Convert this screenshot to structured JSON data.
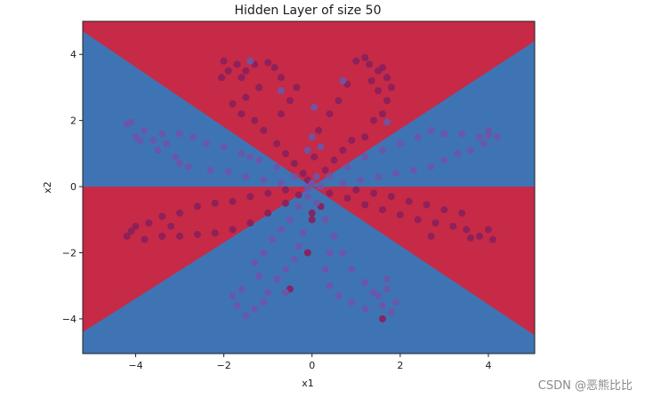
{
  "chart_data": {
    "type": "scatter",
    "title": "Hidden Layer of size 50",
    "xlabel": "x1",
    "ylabel": "x2",
    "xlim": [
      -5.2,
      5.05
    ],
    "ylim": [
      -5.05,
      5.0
    ],
    "xticks": [
      -4,
      -2,
      0,
      2,
      4
    ],
    "yticks": [
      -4,
      -2,
      0,
      2,
      4
    ],
    "xtick_labels": [
      "−4",
      "−2",
      "0",
      "2",
      "4"
    ],
    "ytick_labels": [
      "−4",
      "−2",
      "0",
      "2",
      "4"
    ],
    "grid": false,
    "background": {
      "type": "decision_regions",
      "red_color": "#c62a47",
      "blue_color": "#3f74b4",
      "red_regions": [
        [
          [
            -5.2,
            5.0
          ],
          [
            5.05,
            5.0
          ],
          [
            5.05,
            4.4
          ],
          [
            0,
            0
          ],
          [
            -5.2,
            4.7
          ]
        ],
        [
          [
            -5.2,
            0
          ],
          [
            0,
            0
          ],
          [
            5.05,
            0
          ],
          [
            5.05,
            -4.5
          ],
          [
            0,
            0
          ],
          [
            -5.2,
            -4.4
          ]
        ]
      ]
    },
    "series": [
      {
        "color": "#8a1f5c",
        "points": [
          [
            -2.0,
            3.8
          ],
          [
            -1.7,
            3.7
          ],
          [
            -1.5,
            3.5
          ],
          [
            -1.6,
            3.3
          ],
          [
            -1.9,
            3.5
          ],
          [
            -1.3,
            3.7
          ],
          [
            -1.0,
            3.75
          ],
          [
            -0.85,
            3.6
          ],
          [
            -0.7,
            3.3
          ],
          [
            -1.2,
            3.0
          ],
          [
            -1.5,
            2.7
          ],
          [
            -1.8,
            2.5
          ],
          [
            -1.6,
            2.2
          ],
          [
            -1.3,
            2.0
          ],
          [
            -1.1,
            1.7
          ],
          [
            -0.8,
            1.3
          ],
          [
            -0.6,
            1.0
          ],
          [
            -0.4,
            0.7
          ],
          [
            -0.2,
            0.4
          ],
          [
            -0.1,
            0.2
          ],
          [
            -0.35,
            3.0
          ],
          [
            -0.5,
            2.6
          ],
          [
            -0.7,
            2.2
          ],
          [
            -2.05,
            3.3
          ],
          [
            1.0,
            3.8
          ],
          [
            1.3,
            3.7
          ],
          [
            1.5,
            3.5
          ],
          [
            1.7,
            3.3
          ],
          [
            1.6,
            3.6
          ],
          [
            1.2,
            3.9
          ],
          [
            1.8,
            3.0
          ],
          [
            1.7,
            2.6
          ],
          [
            1.6,
            2.2
          ],
          [
            1.4,
            2.0
          ],
          [
            1.2,
            1.5
          ],
          [
            0.9,
            1.4
          ],
          [
            0.7,
            1.1
          ],
          [
            0.5,
            0.8
          ],
          [
            0.3,
            0.5
          ],
          [
            0.8,
            3.1
          ],
          [
            0.6,
            2.6
          ],
          [
            0.4,
            2.2
          ],
          [
            0.15,
            1.7
          ],
          [
            0.05,
            0.9
          ],
          [
            1.5,
            2.9
          ],
          [
            1.35,
            3.2
          ],
          [
            -4.2,
            -1.5
          ],
          [
            -4.0,
            -1.2
          ],
          [
            -3.7,
            -1.1
          ],
          [
            -3.4,
            -0.9
          ],
          [
            -3.0,
            -0.8
          ],
          [
            -2.6,
            -0.6
          ],
          [
            -2.2,
            -0.5
          ],
          [
            -1.8,
            -0.45
          ],
          [
            -1.4,
            -0.3
          ],
          [
            -1.0,
            -0.2
          ],
          [
            -0.6,
            -0.1
          ],
          [
            -3.8,
            -1.6
          ],
          [
            -3.4,
            -1.5
          ],
          [
            -3.0,
            -1.5
          ],
          [
            -2.6,
            -1.45
          ],
          [
            -2.2,
            -1.4
          ],
          [
            -1.8,
            -1.3
          ],
          [
            -1.4,
            -1.1
          ],
          [
            -1.0,
            -0.8
          ],
          [
            -0.6,
            -0.5
          ],
          [
            -0.3,
            -0.25
          ],
          [
            -4.1,
            -1.35
          ],
          [
            -3.2,
            -1.2
          ],
          [
            4.0,
            -1.3
          ],
          [
            4.1,
            -1.6
          ],
          [
            3.8,
            -1.5
          ],
          [
            3.5,
            -1.3
          ],
          [
            3.2,
            -1.2
          ],
          [
            2.8,
            -1.1
          ],
          [
            2.4,
            -1.0
          ],
          [
            2.0,
            -0.85
          ],
          [
            1.6,
            -0.7
          ],
          [
            1.2,
            -0.55
          ],
          [
            0.8,
            -0.35
          ],
          [
            0.4,
            -0.2
          ],
          [
            3.4,
            -0.8
          ],
          [
            3.0,
            -0.7
          ],
          [
            2.6,
            -0.55
          ],
          [
            2.2,
            -0.45
          ],
          [
            1.8,
            -0.3
          ],
          [
            1.4,
            -0.2
          ],
          [
            1.0,
            -0.1
          ],
          [
            3.6,
            -1.55
          ],
          [
            2.7,
            -1.5
          ],
          [
            0.2,
            -0.6
          ],
          [
            0.0,
            -1.0
          ],
          [
            1.6,
            -4.0
          ],
          [
            -0.5,
            -3.1
          ],
          [
            -0.1,
            -2.0
          ],
          [
            0.0,
            -0.8
          ]
        ]
      },
      {
        "color": "#6b56a8",
        "points": [
          [
            -4.2,
            1.9
          ],
          [
            -3.8,
            1.7
          ],
          [
            -3.4,
            1.6
          ],
          [
            -3.0,
            1.6
          ],
          [
            -2.7,
            1.5
          ],
          [
            -3.6,
            1.4
          ],
          [
            -3.3,
            1.3
          ],
          [
            -3.9,
            1.4
          ],
          [
            -4.0,
            1.5
          ],
          [
            -2.4,
            1.3
          ],
          [
            -2.0,
            1.2
          ],
          [
            -1.6,
            1.0
          ],
          [
            -1.2,
            0.8
          ],
          [
            -0.8,
            0.6
          ],
          [
            -0.4,
            0.3
          ],
          [
            -3.5,
            1.1
          ],
          [
            -3.1,
            0.9
          ],
          [
            -2.8,
            0.6
          ],
          [
            -2.3,
            0.5
          ],
          [
            -1.9,
            0.45
          ],
          [
            -1.5,
            0.3
          ],
          [
            -1.1,
            0.2
          ],
          [
            -0.7,
            0.1
          ],
          [
            -3.0,
            0.7
          ],
          [
            2.7,
            1.7
          ],
          [
            3.0,
            1.6
          ],
          [
            3.4,
            1.6
          ],
          [
            3.8,
            1.5
          ],
          [
            4.0,
            1.7
          ],
          [
            4.2,
            1.5
          ],
          [
            2.4,
            1.5
          ],
          [
            2.0,
            1.3
          ],
          [
            1.6,
            1.1
          ],
          [
            1.2,
            0.9
          ],
          [
            0.8,
            0.6
          ],
          [
            0.4,
            0.3
          ],
          [
            3.6,
            1.1
          ],
          [
            3.3,
            1.0
          ],
          [
            3.0,
            0.8
          ],
          [
            2.7,
            0.6
          ],
          [
            2.3,
            0.5
          ],
          [
            1.9,
            0.4
          ],
          [
            1.5,
            0.3
          ],
          [
            1.1,
            0.2
          ],
          [
            0.7,
            0.1
          ],
          [
            3.9,
            1.3
          ],
          [
            -1.8,
            -3.3
          ],
          [
            -1.7,
            -3.6
          ],
          [
            -1.5,
            -3.9
          ],
          [
            -1.3,
            -3.7
          ],
          [
            -1.1,
            -3.5
          ],
          [
            -1.0,
            -3.2
          ],
          [
            -1.2,
            -2.7
          ],
          [
            -1.3,
            -2.3
          ],
          [
            -1.1,
            -2.0
          ],
          [
            -0.9,
            -1.6
          ],
          [
            -0.7,
            -1.3
          ],
          [
            -0.5,
            -1.0
          ],
          [
            -0.3,
            -0.6
          ],
          [
            -0.1,
            -0.3
          ],
          [
            -0.8,
            -2.8
          ],
          [
            -0.6,
            -2.5
          ],
          [
            -0.4,
            -2.2
          ],
          [
            -0.3,
            -1.8
          ],
          [
            -0.2,
            -1.4
          ],
          [
            -1.6,
            -3.1
          ],
          [
            -0.6,
            -3.2
          ],
          [
            0.3,
            -1.0
          ],
          [
            0.5,
            -1.5
          ],
          [
            0.7,
            -2.0
          ],
          [
            0.9,
            -2.5
          ],
          [
            1.2,
            -2.9
          ],
          [
            1.4,
            -3.2
          ],
          [
            1.6,
            -3.6
          ],
          [
            1.8,
            -3.8
          ],
          [
            1.9,
            -3.5
          ],
          [
            1.7,
            -3.1
          ],
          [
            0.4,
            -2.0
          ],
          [
            0.3,
            -2.5
          ],
          [
            0.4,
            -3.0
          ],
          [
            0.6,
            -3.3
          ],
          [
            0.9,
            -3.5
          ],
          [
            1.2,
            -3.7
          ],
          [
            1.5,
            -3.3
          ],
          [
            1.7,
            -2.8
          ],
          [
            0.1,
            -0.5
          ],
          [
            0.2,
            0.0
          ],
          [
            0.0,
            0.1
          ],
          [
            -0.1,
            -0.05
          ],
          [
            0.1,
            0.3
          ],
          [
            -4.1,
            1.95
          ],
          [
            -1.4,
            3.8
          ],
          [
            -0.7,
            2.9
          ],
          [
            0.7,
            3.2
          ],
          [
            0.0,
            1.5
          ],
          [
            -0.1,
            1.1
          ],
          [
            0.2,
            1.2
          ],
          [
            0.05,
            2.4
          ],
          [
            1.7,
            1.95
          ],
          [
            4.0,
            1.55
          ],
          [
            -1.4,
            0.9
          ]
        ]
      }
    ]
  },
  "watermark": "CSDN @恶熊比比"
}
